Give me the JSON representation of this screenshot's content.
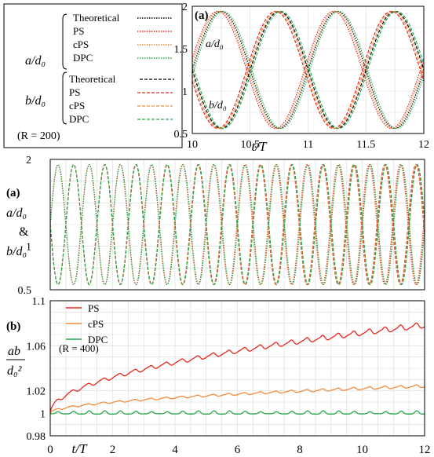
{
  "colors": {
    "theoretical": "#000000",
    "ps": "#e8231c",
    "cps": "#f28a3c",
    "dpc": "#22a84a",
    "grid": "#d9d9d9"
  },
  "legend_box": {
    "group_a_label": "a/d₀",
    "group_b_label": "b/d₀",
    "entries_a": [
      "Theoretical",
      "PS",
      "cPS",
      "DPC"
    ],
    "entries_b": [
      "Theoretical",
      "PS",
      "cPS",
      "DPC"
    ],
    "note": "(R = 200)"
  },
  "chart_data": [
    {
      "id": "inset",
      "type": "line",
      "panel_label": "(a)",
      "xlabel": "t/T",
      "xlim": [
        10,
        12
      ],
      "ylim": [
        0.5,
        2
      ],
      "xticks": [
        "10",
        "10.5",
        "11",
        "11.5",
        "12"
      ],
      "yticks": [
        "0.5",
        "1",
        "1.5",
        "2"
      ],
      "curve_labels": [
        "a/d₀",
        "b/d₀"
      ],
      "grid": true,
      "params": {
        "period": 1.0,
        "y_min": 0.56,
        "y_max": 1.94,
        "y_start": 1.0
      },
      "series": [
        {
          "name": "Theoretical",
          "group": "a",
          "style": "dotted",
          "phase_shift": 0.0
        },
        {
          "name": "PS",
          "group": "a",
          "style": "dotted",
          "phase_shift": -0.03
        },
        {
          "name": "cPS",
          "group": "a",
          "style": "dotted",
          "phase_shift": -0.015
        },
        {
          "name": "DPC",
          "group": "a",
          "style": "dotted",
          "phase_shift": 0.015
        },
        {
          "name": "Theoretical",
          "group": "b",
          "style": "dashed",
          "phase_shift": 0.0
        },
        {
          "name": "PS",
          "group": "b",
          "style": "dashed",
          "phase_shift": -0.03
        },
        {
          "name": "cPS",
          "group": "b",
          "style": "dashed",
          "phase_shift": -0.015
        },
        {
          "name": "DPC",
          "group": "b",
          "style": "dashed",
          "phase_shift": 0.015
        }
      ]
    },
    {
      "id": "main-a",
      "type": "line",
      "panel_label": "(a)",
      "ylabel_parts": [
        "a/d₀",
        "&",
        "b/d₀"
      ],
      "xlim": [
        0,
        12
      ],
      "ylim": [
        0.5,
        2
      ],
      "yticks": [
        "0.5",
        "1",
        "2"
      ],
      "grid": true,
      "params": {
        "period": 1.0,
        "y_min": 0.56,
        "y_max": 1.94,
        "y_start": 1.0
      }
    },
    {
      "id": "main-b",
      "type": "line",
      "panel_label": "(b)",
      "ylabel_num": "ab",
      "ylabel_den": "d₀²",
      "xlabel": "t/T",
      "xlim": [
        0,
        12
      ],
      "ylim": [
        0.98,
        1.1
      ],
      "xticks": [
        "0",
        "2",
        "4",
        "6",
        "8",
        "10",
        "12"
      ],
      "yticks": [
        "0.98",
        "1",
        "1.02",
        "1.06",
        "1.1"
      ],
      "note": "(R = 400)",
      "legend": [
        "PS",
        "cPS",
        "DPC"
      ],
      "grid": true,
      "series": [
        {
          "name": "PS",
          "start": 1.0,
          "end": 1.078,
          "growth": "sqrt",
          "osc_amp": 0.004
        },
        {
          "name": "cPS",
          "start": 1.0,
          "end": 1.024,
          "growth": "sqrt",
          "osc_amp": 0.002
        },
        {
          "name": "DPC",
          "start": 1.0,
          "end": 1.0,
          "growth": "flat",
          "osc_amp": 0.003
        }
      ]
    }
  ]
}
